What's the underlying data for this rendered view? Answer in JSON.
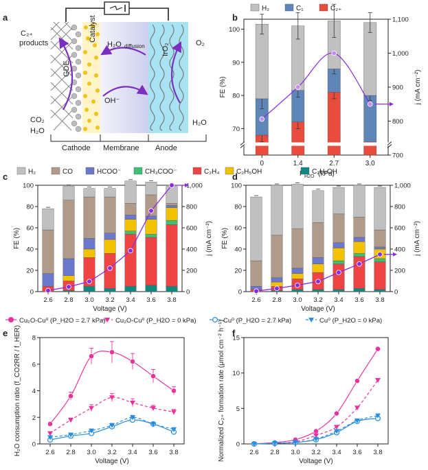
{
  "colors": {
    "h2": "#c0c0c0",
    "co": "#b09a8a",
    "hcoo": "#6b78cc",
    "ch3coo": "#3fbf73",
    "c2h4": "#ef4444",
    "c2h5oh": "#f2c200",
    "c3h7oh": "#108a80",
    "c1": "#5f86b8",
    "c2plus": "#e84c3d",
    "current": "#8a2be2",
    "pink": "#e8339c",
    "blue": "#2a8ee0"
  },
  "panel_a": {
    "letter": "a",
    "labels": {
      "c2_products": "C₂₊",
      "products": "products",
      "catalyst": "Catalyst",
      "gde": "GDE",
      "h2o_diff": "H₂O",
      "diffusion": "diffusion",
      "iro2": "IrO₂",
      "o2": "O₂",
      "oh": "OH⁻",
      "co2": "CO₂",
      "h2o_left": "H₂O",
      "h2o_right": "H₂O",
      "cathode": "Cathode",
      "membrane": "Membrane",
      "anode": "Anode"
    }
  },
  "chart_data": [
    {
      "id": "b",
      "type": "bar",
      "letter": "b",
      "categories": [
        "0",
        "1.4",
        "2.7",
        "3.0"
      ],
      "xlabel_main": "P",
      "xlabel_sub": "H2O",
      "xlabel_unit": "(kPa)",
      "ylabel": "FE (%)",
      "y2label": "j (mA cm⁻²)",
      "ylim": [
        62,
        103
      ],
      "yticks": [
        "70",
        "80",
        "90",
        "100"
      ],
      "y2lim": [
        700,
        1100
      ],
      "y2ticks": [
        "700",
        "800",
        "900",
        "1,000",
        "1,100"
      ],
      "legend": [
        "H₂",
        "C₁",
        "C₂₊"
      ],
      "c2plus": [
        68,
        72,
        81,
        66
      ],
      "c1": [
        11,
        9.5,
        7,
        14
      ],
      "h2": [
        22.5,
        19.5,
        14.5,
        22
      ],
      "errors": [
        [
          2,
          3,
          3
        ],
        [
          2,
          2,
          4
        ],
        [
          2,
          1.5,
          5
        ],
        [
          1,
          1.5,
          3
        ]
      ],
      "current": [
        806,
        900,
        1000,
        850
      ]
    },
    {
      "id": "c",
      "type": "bar",
      "letter": "c",
      "categories": [
        "2.6",
        "2.8",
        "3.0",
        "3.2",
        "3.4",
        "3.6",
        "3.8"
      ],
      "xlabel": "Voltage (V)",
      "ylabel": "FE (%)",
      "y2label": "j (mA cm⁻²)",
      "ylim": [
        0,
        100
      ],
      "yticks": [
        "0",
        "20",
        "40",
        "60",
        "80",
        "100"
      ],
      "y2lim": [
        0,
        1000
      ],
      "y2ticks": [
        "0",
        "200",
        "400",
        "600",
        "800",
        "1,000"
      ],
      "legend": [
        "H₂",
        "CO",
        "HCOO⁻",
        "CH₃COO⁻",
        "C₂H₄"
      ],
      "series": [
        {
          "name": "C₃H₇OH",
          "values": [
            0,
            1,
            5,
            3,
            5,
            6,
            5
          ]
        },
        {
          "name": "C₂H₄",
          "values": [
            5,
            9,
            27,
            33,
            49,
            45,
            58
          ]
        },
        {
          "name": "CH₃COO⁻",
          "values": [
            0,
            0,
            0,
            0,
            3,
            3,
            4
          ]
        },
        {
          "name": "C₂H₅OH",
          "values": [
            0,
            5,
            8,
            13,
            11,
            14,
            12
          ]
        },
        {
          "name": "HCOO⁻",
          "values": [
            12,
            16,
            10,
            6,
            4,
            3,
            2
          ]
        },
        {
          "name": "CO",
          "values": [
            41,
            55,
            39,
            34,
            11,
            20,
            2
          ]
        },
        {
          "name": "H₂",
          "values": [
            20,
            13,
            8,
            8,
            21,
            12,
            16
          ]
        }
      ],
      "current": [
        10,
        45,
        95,
        220,
        385,
        760,
        1000
      ]
    },
    {
      "id": "d",
      "type": "bar",
      "letter": "d",
      "categories": [
        "2.6",
        "2.8",
        "3.0",
        "3.2",
        "3.4",
        "3.6",
        "3.8"
      ],
      "xlabel": "Voltage (V)",
      "ylabel": "FE (%)",
      "y2label": "j (mA cm⁻²)",
      "ylim": [
        0,
        100
      ],
      "yticks": [
        "0",
        "20",
        "40",
        "60",
        "80",
        "100"
      ],
      "y2lim": [
        0,
        1000
      ],
      "y2ticks": [
        "0",
        "200",
        "400",
        "600",
        "800",
        "1,000"
      ],
      "legend": [
        "C₂H₅OH",
        "C₃H₇OH"
      ],
      "series": [
        {
          "name": "C₃H₇OH",
          "values": [
            0,
            1,
            2,
            2,
            2,
            3,
            2
          ]
        },
        {
          "name": "C₂H₄",
          "values": [
            2,
            4,
            10,
            16,
            24,
            30,
            26
          ]
        },
        {
          "name": "CH₃COO⁻",
          "values": [
            0,
            0,
            0,
            0,
            3,
            3,
            3
          ]
        },
        {
          "name": "C₂H₅OH",
          "values": [
            0,
            4,
            5,
            8,
            12,
            11,
            9
          ]
        },
        {
          "name": "HCOO⁻",
          "values": [
            3,
            4,
            5,
            6,
            5,
            4,
            2
          ]
        },
        {
          "name": "CO",
          "values": [
            24,
            40,
            37,
            33,
            27,
            19,
            16
          ]
        },
        {
          "name": "H₂",
          "values": [
            60,
            47,
            42,
            30,
            25,
            30,
            40
          ]
        }
      ],
      "current": [
        5,
        30,
        60,
        95,
        180,
        260,
        350
      ]
    },
    {
      "id": "e",
      "type": "line",
      "letter": "e",
      "x": [
        2.6,
        2.8,
        3.0,
        3.2,
        3.4,
        3.6,
        3.8
      ],
      "xlabel": "Voltage (V)",
      "ylabel": "H₂O consumption ratio (f_CO2RR / f_HER)",
      "xlim": [
        2.5,
        3.9
      ],
      "ylim": [
        0,
        8
      ],
      "yticks": [
        "0",
        "2",
        "4",
        "6",
        "8"
      ],
      "xticks": [
        "2.6",
        "2.8",
        "3.0",
        "3.2",
        "3.4",
        "3.6",
        "3.8"
      ],
      "legend": [
        "Cu₂O-Cu⁰ (P_H2O = 2.7 kPa)",
        "Cu₂O-Cu⁰ (P_H2O = 0 kPa)"
      ],
      "series": [
        {
          "name": "Cu₂O-Cu⁰ 2.7 kPa",
          "values": [
            1.5,
            3.6,
            6.6,
            6.9,
            6.2,
            5.1,
            4.0
          ],
          "err": [
            0.15,
            0.3,
            0.6,
            0.8,
            0.6,
            0.5,
            0.3
          ]
        },
        {
          "name": "Cu₂O-Cu⁰ 0 kPa",
          "values": [
            0.8,
            1.8,
            2.7,
            3.5,
            3.1,
            2.7,
            2.4
          ],
          "err": [
            0.1,
            0.15,
            0.25,
            0.3,
            0.3,
            0.2,
            0.2
          ]
        },
        {
          "name": "Cu⁰ 2.7 kPa",
          "values": [
            0.3,
            0.6,
            0.8,
            1.3,
            1.8,
            1.5,
            0.9
          ],
          "err": [
            0.1,
            0.1,
            0.1,
            0.15,
            0.15,
            0.1,
            0.1
          ]
        },
        {
          "name": "Cu⁰ 0 kPa",
          "values": [
            0.5,
            0.7,
            1.0,
            1.4,
            2.0,
            1.5,
            1.1
          ],
          "err": [
            0.1,
            0.1,
            0.1,
            0.15,
            0.15,
            0.1,
            0.1
          ]
        }
      ]
    },
    {
      "id": "f",
      "type": "line",
      "letter": "f",
      "x": [
        2.6,
        2.8,
        3.0,
        3.2,
        3.4,
        3.6,
        3.8
      ],
      "xlabel": "Voltage (V)",
      "ylabel": "Normalized C₂₊ formation rate (μmol cm⁻² h⁻¹)",
      "xlim": [
        2.5,
        3.9
      ],
      "ylim": [
        0,
        15
      ],
      "yticks": [
        "0",
        "5",
        "10",
        "15"
      ],
      "xticks": [
        "2.6",
        "2.8",
        "3.0",
        "3.2",
        "3.4",
        "3.6",
        "3.8"
      ],
      "legend": [
        "Cu⁰ (P_H2O = 2.7 kPa)",
        "Cu⁰ (P_H2O = 0 kPa)"
      ],
      "series": [
        {
          "name": "Cu₂O-Cu⁰ 2.7 kPa",
          "values": [
            0.0,
            0.2,
            0.6,
            1.8,
            4.3,
            8.9,
            13.4
          ]
        },
        {
          "name": "Cu₂O-Cu⁰ 0 kPa",
          "values": [
            0.0,
            0.1,
            0.3,
            1.2,
            2.4,
            5.1,
            9.0
          ]
        },
        {
          "name": "Cu⁰ 2.7 kPa",
          "values": [
            0.0,
            0.1,
            0.2,
            0.6,
            1.6,
            3.2,
            3.6
          ]
        },
        {
          "name": "Cu⁰ 0 kPa",
          "values": [
            0.0,
            0.1,
            0.2,
            0.7,
            1.8,
            3.3,
            4.0
          ]
        }
      ]
    }
  ]
}
